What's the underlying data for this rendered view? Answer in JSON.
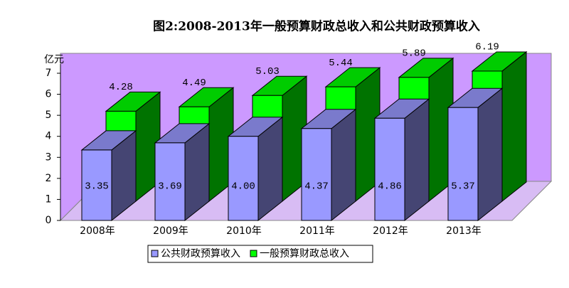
{
  "chart_data": {
    "type": "bar3d",
    "title": "图2:2008-2013年一般预算财政总收入和公共财政预算收入",
    "y_label": "亿元",
    "categories": [
      "2008年",
      "2009年",
      "2010年",
      "2011年",
      "2012年",
      "2013年"
    ],
    "series": [
      {
        "name": "公共财政预算收入",
        "color": "#9999ff",
        "values": [
          3.35,
          3.69,
          4.0,
          4.37,
          4.86,
          5.37
        ],
        "value_labels": [
          "3.35",
          "3.69",
          "4.00",
          "4.37",
          "4.86",
          "5.37"
        ]
      },
      {
        "name": "一般预算财政总收入",
        "color": "#00ff00",
        "values": [
          4.28,
          4.49,
          5.03,
          5.44,
          5.89,
          6.19
        ],
        "value_labels": [
          "4.28",
          "4.49",
          "5.03",
          "5.44",
          "5.89",
          "6.19"
        ]
      }
    ],
    "ylim": [
      0,
      7
    ],
    "yticks": [
      0,
      1,
      2,
      3,
      4,
      5,
      6,
      7
    ],
    "grid": false,
    "legend": "bottom"
  }
}
